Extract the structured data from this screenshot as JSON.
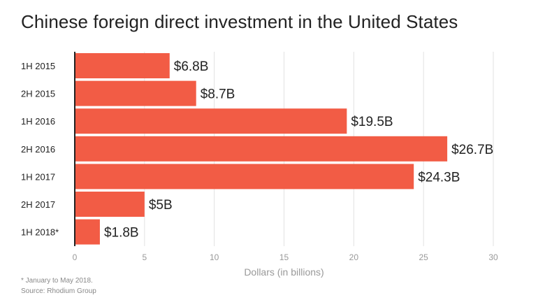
{
  "chart_data": {
    "type": "bar",
    "orientation": "horizontal",
    "title": "Chinese foreign direct investment in the United States",
    "xlabel": "Dollars (in billions)",
    "ylabel": "",
    "categories": [
      "1H 2015",
      "2H 2015",
      "1H 2016",
      "2H 2016",
      "1H 2017",
      "2H 2017",
      "1H 2018*"
    ],
    "values": [
      6.8,
      8.7,
      19.5,
      26.7,
      24.3,
      5,
      1.8
    ],
    "data_labels": [
      "$6.8B",
      "$8.7B",
      "$19.5B",
      "$26.7B",
      "$24.3B",
      "$5B",
      "$1.8B"
    ],
    "xlim": [
      0,
      30
    ],
    "xticks": [
      0,
      5,
      10,
      15,
      20,
      25,
      30
    ],
    "grid": "vertical",
    "legend": "none",
    "colors": {
      "bar": "#f25c45",
      "grid": "#e2e2e2",
      "axis": "#222222"
    }
  },
  "footnote": "* January to May 2018.",
  "source": "Source: Rhodium Group"
}
